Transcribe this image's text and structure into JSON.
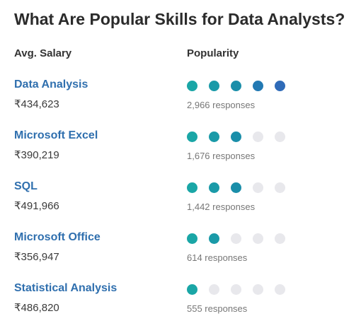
{
  "title": "What Are Popular Skills for Data Analysts?",
  "headers": {
    "salary": "Avg. Salary",
    "popularity": "Popularity"
  },
  "colors": {
    "dot_levels": [
      "#1aa6a6",
      "#1a9aa8",
      "#1a8ea9",
      "#2279b3",
      "#2f6bb8"
    ],
    "dot_empty": "#e8e8ec",
    "skill_link": "#2f6fae"
  },
  "skills": [
    {
      "name": "Data Analysis",
      "salary": "₹434,623",
      "popularity": 5,
      "responses": "2,966 responses"
    },
    {
      "name": "Microsoft Excel",
      "salary": "₹390,219",
      "popularity": 3,
      "responses": "1,676 responses"
    },
    {
      "name": "SQL",
      "salary": "₹491,966",
      "popularity": 3,
      "responses": "1,442 responses"
    },
    {
      "name": "Microsoft Office",
      "salary": "₹356,947",
      "popularity": 2,
      "responses": "614 responses"
    },
    {
      "name": "Statistical Analysis",
      "salary": "₹486,820",
      "popularity": 1,
      "responses": "555 responses"
    }
  ]
}
